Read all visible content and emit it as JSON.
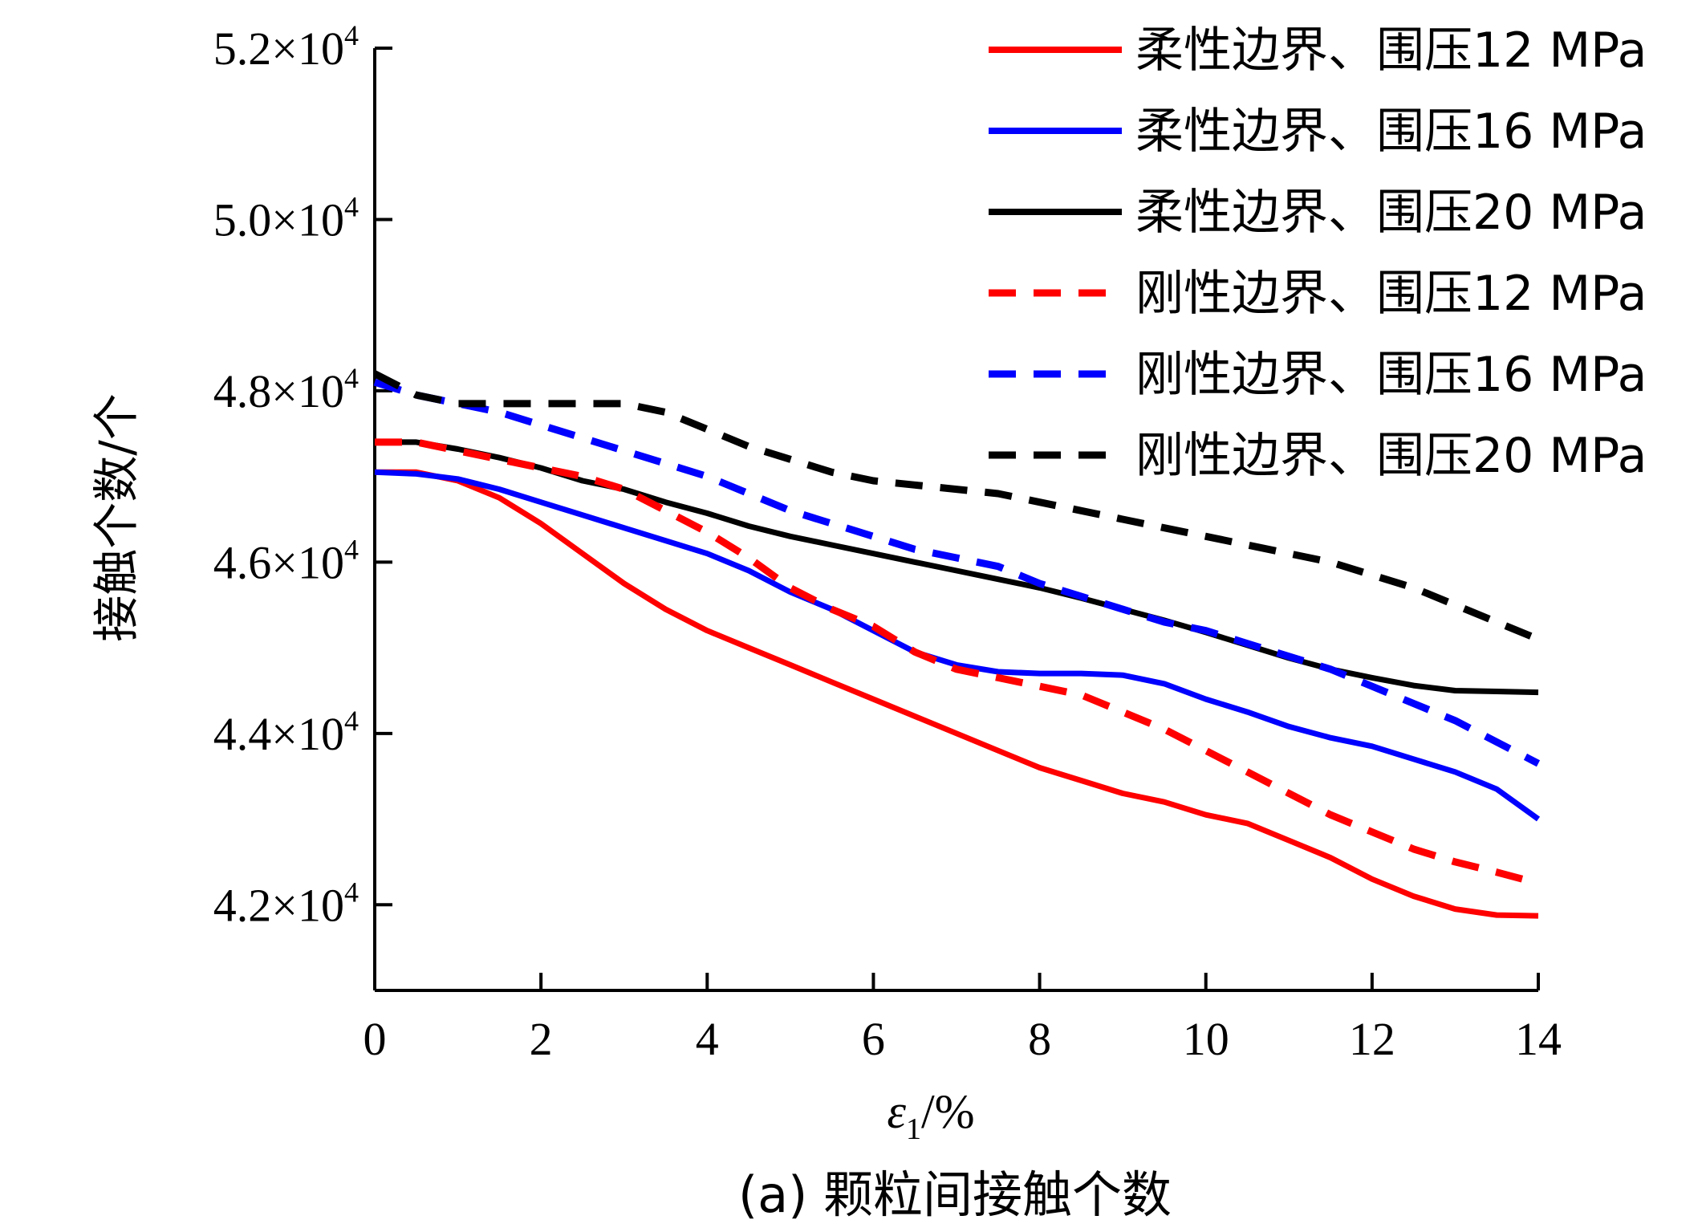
{
  "chart_data": {
    "type": "line",
    "xlabel": {
      "symbol": "ε",
      "subscript": "1",
      "unit": "/%"
    },
    "ylabel": "接触个数/个",
    "caption": "(a) 颗粒间接触个数",
    "xlim": [
      0,
      14
    ],
    "ylim": [
      41000,
      52000
    ],
    "x_ticks": [
      0,
      2,
      4,
      6,
      8,
      10,
      12,
      14
    ],
    "x_tick_labels": [
      "0",
      "2",
      "4",
      "6",
      "8",
      "10",
      "12",
      "14"
    ],
    "y_ticks": [
      42000,
      44000,
      46000,
      48000,
      50000,
      52000
    ],
    "y_tick_labels": [
      {
        "mantissa": "4.2×10",
        "exp": "4"
      },
      {
        "mantissa": "4.4×10",
        "exp": "4"
      },
      {
        "mantissa": "4.6×10",
        "exp": "4"
      },
      {
        "mantissa": "4.8×10",
        "exp": "4"
      },
      {
        "mantissa": "5.0×10",
        "exp": "4"
      },
      {
        "mantissa": "5.2×10",
        "exp": "4"
      }
    ],
    "legend_position": "top-right",
    "series": [
      {
        "name": "柔性边界、围压12 MPa",
        "color": "#ff0000",
        "dash": "solid",
        "x": [
          0,
          0.5,
          1,
          1.5,
          2,
          2.5,
          3,
          3.5,
          4,
          4.5,
          5,
          5.5,
          6,
          6.5,
          7,
          7.5,
          8,
          8.5,
          9,
          9.5,
          10,
          10.5,
          11,
          11.5,
          12,
          12.5,
          13,
          13.5,
          14
        ],
        "y": [
          47050,
          47050,
          46950,
          46750,
          46450,
          46100,
          45750,
          45450,
          45200,
          45000,
          44800,
          44600,
          44400,
          44200,
          44000,
          43800,
          43600,
          43450,
          43300,
          43200,
          43050,
          42950,
          42750,
          42550,
          42300,
          42100,
          41950,
          41880,
          41870
        ]
      },
      {
        "name": "柔性边界、围压16 MPa",
        "color": "#0000ff",
        "dash": "solid",
        "x": [
          0,
          0.5,
          1,
          1.5,
          2,
          2.5,
          3,
          3.5,
          4,
          4.5,
          5,
          5.5,
          6,
          6.5,
          7,
          7.5,
          8,
          8.5,
          9,
          9.5,
          10,
          10.5,
          11,
          11.5,
          12,
          12.5,
          13,
          13.5,
          14
        ],
        "y": [
          47050,
          47030,
          46970,
          46850,
          46700,
          46550,
          46400,
          46250,
          46100,
          45900,
          45650,
          45450,
          45200,
          44950,
          44800,
          44720,
          44700,
          44700,
          44680,
          44580,
          44400,
          44250,
          44080,
          43950,
          43850,
          43700,
          43550,
          43350,
          43000
        ]
      },
      {
        "name": "柔性边界、围压20 MPa",
        "color": "#000000",
        "dash": "solid",
        "x": [
          0,
          0.5,
          1,
          1.5,
          2,
          2.5,
          3,
          3.5,
          4,
          4.5,
          5,
          5.5,
          6,
          6.5,
          7,
          7.5,
          8,
          8.5,
          9,
          9.5,
          10,
          10.5,
          11,
          11.5,
          12,
          12.5,
          13,
          13.5,
          14
        ],
        "y": [
          47400,
          47400,
          47320,
          47220,
          47100,
          46950,
          46850,
          46700,
          46570,
          46420,
          46300,
          46200,
          46100,
          46000,
          45900,
          45800,
          45700,
          45580,
          45450,
          45320,
          45180,
          45030,
          44880,
          44750,
          44650,
          44560,
          44500,
          44490,
          44480
        ]
      },
      {
        "name": "刚性边界、围压12 MPa",
        "color": "#ff0000",
        "dash": "dashed",
        "x": [
          0,
          0.5,
          1,
          1.5,
          2,
          2.5,
          3,
          3.5,
          4,
          4.5,
          5,
          5.5,
          6,
          6.5,
          7,
          7.5,
          8,
          8.5,
          9,
          9.5,
          10,
          10.5,
          11,
          11.5,
          12,
          12.5,
          13,
          13.5,
          14
        ],
        "y": [
          47400,
          47400,
          47300,
          47200,
          47100,
          47000,
          46850,
          46600,
          46350,
          46050,
          45700,
          45450,
          45250,
          44950,
          44750,
          44650,
          44550,
          44450,
          44250,
          44050,
          43800,
          43550,
          43300,
          43050,
          42850,
          42650,
          42500,
          42380,
          42250
        ]
      },
      {
        "name": "刚性边界、围压16 MPa",
        "color": "#0000ff",
        "dash": "dashed",
        "x": [
          0,
          0.5,
          1,
          1.5,
          2,
          2.5,
          3,
          3.5,
          4,
          4.5,
          5,
          5.5,
          6,
          6.5,
          7,
          7.5,
          8,
          8.5,
          9,
          9.5,
          10,
          10.5,
          11,
          11.5,
          12,
          12.5,
          13,
          13.5,
          14
        ],
        "y": [
          48100,
          47950,
          47850,
          47750,
          47600,
          47450,
          47300,
          47150,
          47000,
          46800,
          46600,
          46450,
          46300,
          46150,
          46050,
          45950,
          45750,
          45600,
          45450,
          45300,
          45200,
          45050,
          44900,
          44750,
          44550,
          44350,
          44150,
          43900,
          43650
        ]
      },
      {
        "name": "刚性边界、围压20 MPa",
        "color": "#000000",
        "dash": "dashed",
        "x": [
          0,
          0.5,
          1,
          1.5,
          2,
          2.5,
          3,
          3.5,
          4,
          4.5,
          5,
          5.5,
          6,
          6.5,
          7,
          7.5,
          8,
          8.5,
          9,
          9.5,
          10,
          10.5,
          11,
          11.5,
          12,
          12.5,
          13,
          13.5,
          14
        ],
        "y": [
          48200,
          47950,
          47850,
          47850,
          47850,
          47850,
          47850,
          47750,
          47550,
          47350,
          47200,
          47050,
          46950,
          46900,
          46850,
          46800,
          46700,
          46600,
          46500,
          46400,
          46300,
          46200,
          46100,
          46000,
          45850,
          45700,
          45500,
          45300,
          45100
        ]
      }
    ]
  }
}
